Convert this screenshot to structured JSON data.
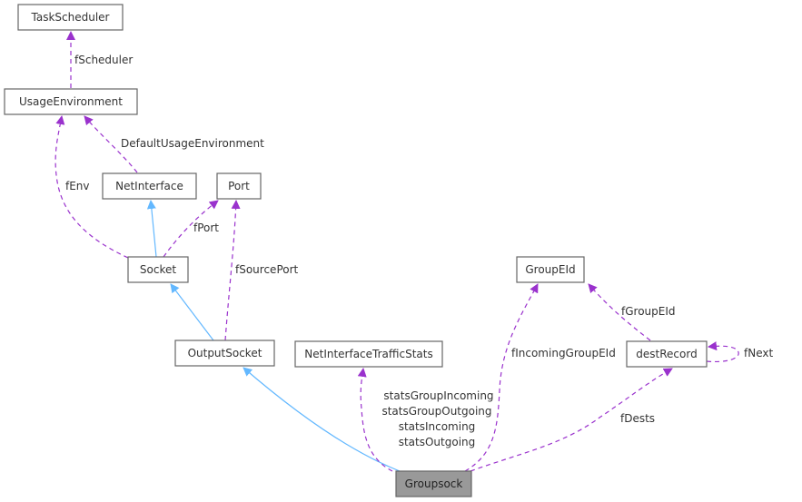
{
  "diagram": {
    "colors": {
      "usage_edge": "#9a32cd",
      "inheritance_edge": "#63b8ff",
      "focus_node_fill": "#999999",
      "node_border": "#666666"
    },
    "nodes": {
      "taskscheduler": "TaskScheduler",
      "usageenvironment": "UsageEnvironment",
      "netinterface": "NetInterface",
      "port": "Port",
      "socket": "Socket",
      "outputsocket": "OutputSocket",
      "netinterfacetrafficstats": "NetInterfaceTrafficStats",
      "groupeid": "GroupEId",
      "destrecord": "destRecord",
      "groupsock": "Groupsock"
    },
    "edge_labels": {
      "fscheduler": "fScheduler",
      "defaultusageenvironment": "DefaultUsageEnvironment",
      "fenv": "fEnv",
      "fport": "fPort",
      "fsourceport": "fSourcePort",
      "stats": [
        "statsGroupIncoming",
        "statsGroupOutgoing",
        "statsIncoming",
        "statsOutgoing"
      ],
      "fincominggroupeid": "fIncomingGroupEId",
      "fgroupeid": "fGroupEId",
      "fnext": "fNext",
      "fdests": "fDests"
    }
  }
}
